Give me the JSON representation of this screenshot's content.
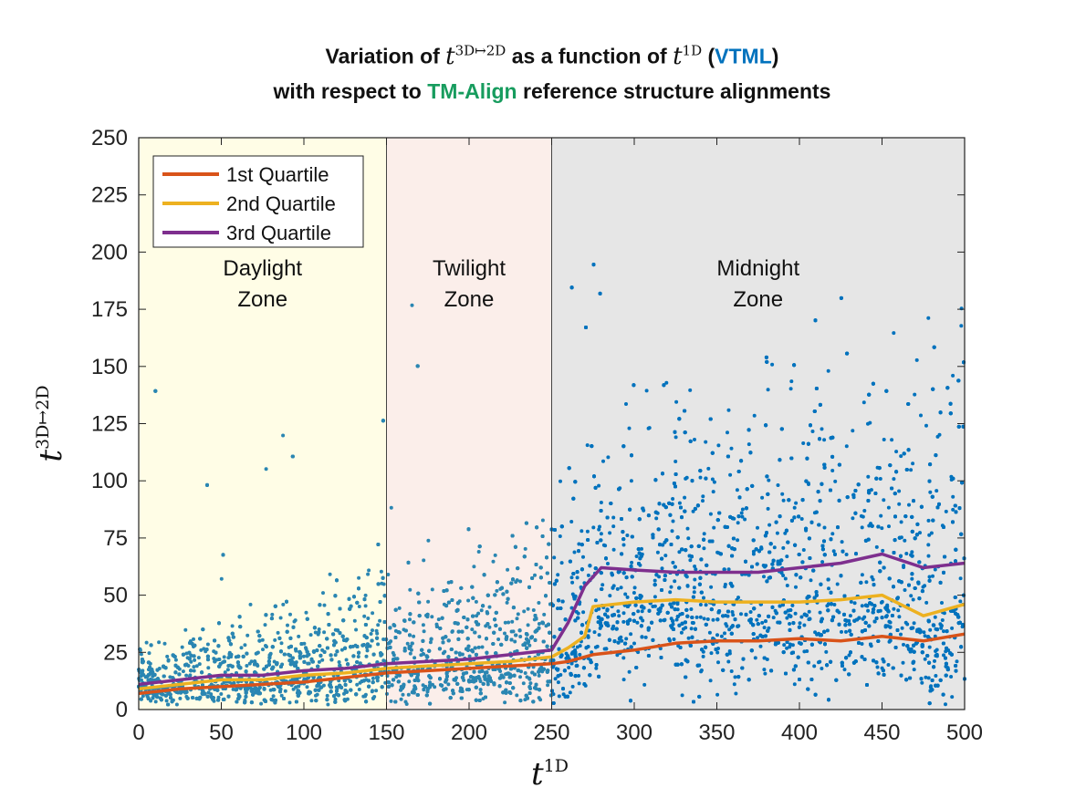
{
  "title": {
    "line1_prefix": "Variation of",
    "line1_middle": "as a function of",
    "line1_method": "VTML",
    "line2_prefix": "with respect to",
    "line2_method": "TM-Align",
    "line2_suffix": "reference structure alignments",
    "method_color": "#0072BD",
    "reference_color": "#179c5e"
  },
  "symbols": {
    "t_base": "t",
    "y_sup": "3D↦2D",
    "x_sup": "1D"
  },
  "chart_data": {
    "type": "scatter",
    "xlim": [
      0,
      500
    ],
    "ylim": [
      0,
      250
    ],
    "xticks": [
      0,
      50,
      100,
      150,
      200,
      250,
      300,
      350,
      400,
      450,
      500
    ],
    "yticks": [
      0,
      25,
      50,
      75,
      100,
      125,
      150,
      175,
      200,
      225,
      250
    ],
    "grid": false,
    "legend_position": "top-left",
    "zones": [
      {
        "label_line1": "Daylight",
        "label_line2": "Zone",
        "x0": 0,
        "x1": 150,
        "color": "#fffde6"
      },
      {
        "label_line1": "Twilight",
        "label_line2": "Zone",
        "x0": 150,
        "x1": 250,
        "color": "#fbeeea"
      },
      {
        "label_line1": "Midnight",
        "label_line2": "Zone",
        "x0": 250,
        "x1": 500,
        "color": "#e6e6e6"
      }
    ],
    "scatter_color": "#0072BD",
    "scatter_color_light": "#2a86b2",
    "series": [
      {
        "name": "1st Quartile",
        "color": "#D95319",
        "x": [
          0,
          25,
          50,
          75,
          100,
          125,
          150,
          175,
          200,
          225,
          250,
          260,
          275,
          300,
          325,
          350,
          375,
          400,
          425,
          450,
          475,
          500
        ],
        "y": [
          7,
          9,
          10,
          11,
          12,
          14,
          16,
          17,
          18,
          19,
          20,
          21,
          24,
          26,
          29,
          30,
          30,
          31,
          30,
          32,
          30,
          33
        ]
      },
      {
        "name": "2nd Quartile",
        "color": "#EDB120",
        "x": [
          0,
          25,
          50,
          75,
          100,
          125,
          150,
          175,
          200,
          225,
          250,
          260,
          270,
          275,
          300,
          325,
          350,
          375,
          400,
          425,
          450,
          475,
          500
        ],
        "y": [
          9,
          11,
          13,
          13,
          15,
          16,
          18,
          19,
          20,
          21,
          23,
          27,
          32,
          45,
          47,
          48,
          47,
          47,
          47,
          48,
          50,
          41,
          46
        ]
      },
      {
        "name": "3rd Quartile",
        "color": "#7E2F8E",
        "x": [
          0,
          25,
          50,
          75,
          100,
          125,
          150,
          175,
          200,
          225,
          250,
          260,
          270,
          280,
          300,
          325,
          350,
          375,
          400,
          425,
          450,
          475,
          500
        ],
        "y": [
          11,
          13,
          15,
          15,
          17,
          18,
          20,
          21,
          22,
          24,
          26,
          38,
          54,
          62,
          61,
          60,
          60,
          60,
          62,
          64,
          68,
          62,
          64
        ]
      }
    ]
  }
}
